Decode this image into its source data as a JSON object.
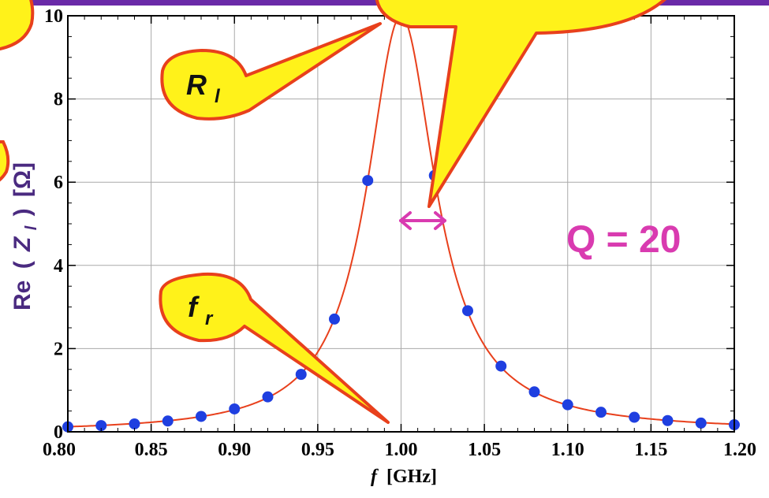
{
  "chart_data": {
    "type": "scatter",
    "title": "",
    "xlabel": "f",
    "xlabel_unit": "[GHz]",
    "ylabel_prefix": "Re",
    "ylabel_var": "Z",
    "ylabel_sub": "l",
    "ylabel_unit": "[Ω]",
    "xlim": [
      0.8,
      1.2
    ],
    "ylim": [
      0,
      10
    ],
    "grid": true,
    "x_ticks": [
      "0.80",
      "0.85",
      "0.90",
      "0.95",
      "1.00",
      "1.05",
      "1.10",
      "1.15",
      "1.20"
    ],
    "y_ticks": [
      "0",
      "2",
      "4",
      "6",
      "8",
      "10"
    ],
    "series": [
      {
        "kind": "points",
        "color": "#1f3fe0",
        "points": [
          [
            0.8,
            0.12
          ],
          [
            0.82,
            0.15
          ],
          [
            0.84,
            0.19
          ],
          [
            0.86,
            0.26
          ],
          [
            0.88,
            0.37
          ],
          [
            0.9,
            0.55
          ],
          [
            0.92,
            0.84
          ],
          [
            0.94,
            1.38
          ],
          [
            0.96,
            2.71
          ],
          [
            0.98,
            6.04
          ],
          [
            1.0,
            10.0
          ],
          [
            1.02,
            6.16
          ],
          [
            1.04,
            2.91
          ],
          [
            1.06,
            1.58
          ],
          [
            1.08,
            0.96
          ],
          [
            1.1,
            0.65
          ],
          [
            1.12,
            0.47
          ],
          [
            1.14,
            0.35
          ],
          [
            1.16,
            0.27
          ],
          [
            1.18,
            0.21
          ],
          [
            1.2,
            0.17
          ]
        ]
      },
      {
        "kind": "curve",
        "color": "#e8401c",
        "model": {
          "peak_x": 1.0,
          "peak_y": 10,
          "Q": 20
        }
      }
    ],
    "annotations": {
      "q_label": "Q = 20",
      "q_color": "#d93bb0",
      "callout_rl_main": "R",
      "callout_rl_sub": "l",
      "callout_fr_main": "f",
      "callout_fr_sub": "r",
      "callout_fill": "#fff21a",
      "callout_stroke": "#e8401c"
    }
  },
  "colors": {
    "top_bar": "#6a2aa8",
    "frame": "#000000",
    "grid": "#aaaaaa",
    "ylabel": "#4a2a80"
  }
}
